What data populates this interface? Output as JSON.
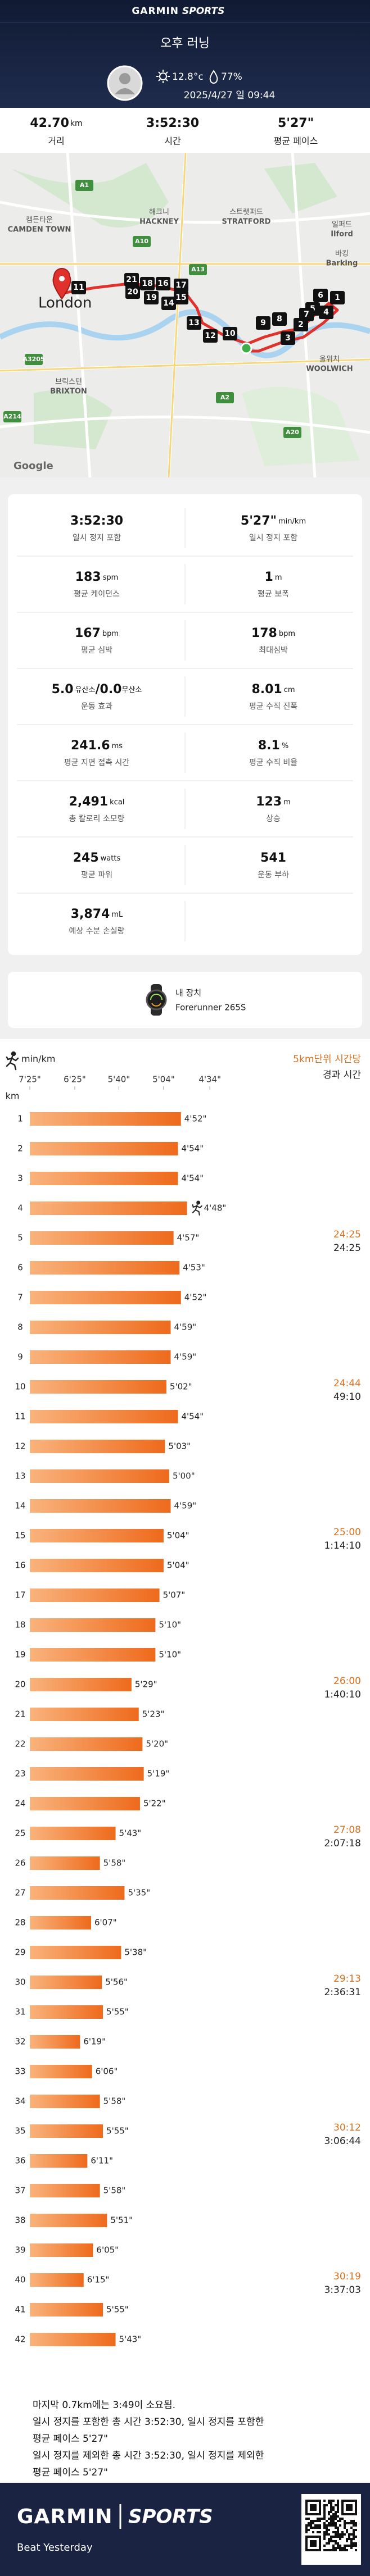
{
  "header": {
    "brand": "GARMIN",
    "brand2": "SPORTS"
  },
  "activity": {
    "title": "오후 러닝",
    "temperature": "12.8°c",
    "humidity": "77%",
    "datetime": "2025/4/27 일 09:44"
  },
  "summary": [
    {
      "value": "42.70",
      "unit": "km",
      "label": "거리"
    },
    {
      "value": "3:52:30",
      "label": "시간"
    },
    {
      "value": "5'27\"",
      "label": "평균 페이스"
    }
  ],
  "map": {
    "places": [
      {
        "ko": "캠든타운",
        "en": "CAMDEN TOWN"
      },
      {
        "ko": "해크니",
        "en": "HACKNEY"
      },
      {
        "ko": "스트랫퍼드",
        "en": "STRATFORD"
      },
      {
        "ko": "일퍼드",
        "en": "Ilford"
      },
      {
        "ko": "바킹",
        "en": "Barking"
      },
      {
        "ko": "브릭스턴",
        "en": "BRIXTON"
      },
      {
        "ko": "울위치",
        "en": "WOOLWICH"
      }
    ],
    "city": "London",
    "roads": [
      "A1",
      "A10",
      "A13",
      "A2",
      "A20",
      "A3205",
      "A214"
    ],
    "markers": [
      "1",
      "2",
      "3",
      "4",
      "5",
      "6",
      "7",
      "8",
      "9",
      "10",
      "11",
      "12",
      "13",
      "14",
      "15",
      "16",
      "17",
      "18",
      "19",
      "20",
      "21"
    ],
    "attribution": "Google"
  },
  "stats": [
    [
      {
        "value": "3:52:30",
        "label": "일시 정지 포함"
      },
      {
        "value": "5'27\"",
        "unit": "min/km",
        "label": "일시 정지 포함"
      }
    ],
    [
      {
        "value": "183",
        "unit": "spm",
        "label": "평균 케이던스"
      },
      {
        "value": "1",
        "unit": "m",
        "label": "평균 보폭"
      }
    ],
    [
      {
        "value": "167",
        "unit": "bpm",
        "label": "평균 심박"
      },
      {
        "value": "178",
        "unit": "bpm",
        "label": "최대심박"
      }
    ],
    [
      {
        "value": "5.0",
        "unit": "유산소",
        "value2": "/0.0",
        "unit2": "무산소",
        "label": "운동 효과"
      },
      {
        "value": "8.01",
        "unit": "cm",
        "label": "평균 수직 진폭"
      }
    ],
    [
      {
        "value": "241.6",
        "unit": "ms",
        "label": "평균 지면 접촉 시간"
      },
      {
        "value": "8.1",
        "unit": "%",
        "label": "평균 수직 비율"
      }
    ],
    [
      {
        "value": "2,491",
        "unit": "kcal",
        "label": "총 칼로리 소모량"
      },
      {
        "value": "123",
        "unit": "m",
        "label": "상승"
      }
    ],
    [
      {
        "value": "245",
        "unit": "watts",
        "label": "평균 파워"
      },
      {
        "value": "541",
        "label": "운동 부하"
      }
    ],
    [
      {
        "value": "3,874",
        "unit": "mL",
        "label": "예상 수분 손실량"
      }
    ]
  ],
  "device": {
    "label": "내 장치",
    "name": "Forerunner 265S"
  },
  "chart_data": {
    "type": "bar",
    "orientation": "horizontal",
    "x_label": "min/km",
    "y_label": "km",
    "xscale": "reciprocal",
    "xlim": [
      445,
      263
    ],
    "xticks": [
      {
        "value": 445,
        "label": "7'25\""
      },
      {
        "value": 385,
        "label": "6'25\""
      },
      {
        "value": 340,
        "label": "5'40\""
      },
      {
        "value": 304,
        "label": "5'04\""
      },
      {
        "value": 274,
        "label": "4'34\""
      }
    ],
    "bar_colors": [
      "#f9b37c",
      "#ee6a1c"
    ],
    "categories": [
      1,
      2,
      3,
      4,
      5,
      6,
      7,
      8,
      9,
      10,
      11,
      12,
      13,
      14,
      15,
      16,
      17,
      18,
      19,
      20,
      21,
      22,
      23,
      24,
      25,
      26,
      27,
      28,
      29,
      30,
      31,
      32,
      33,
      34,
      35,
      36,
      37,
      38,
      39,
      40,
      41,
      42
    ],
    "values": [
      292,
      294,
      294,
      288,
      297,
      293,
      292,
      299,
      299,
      302,
      294,
      303,
      300,
      299,
      304,
      304,
      307,
      310,
      310,
      329,
      323,
      320,
      319,
      322,
      343,
      358,
      335,
      367,
      338,
      356,
      355,
      379,
      366,
      358,
      355,
      371,
      358,
      351,
      365,
      375,
      355,
      343
    ],
    "value_labels": [
      "4'52\"",
      "4'54\"",
      "4'54\"",
      "4'48\"",
      "4'57\"",
      "4'53\"",
      "4'52\"",
      "4'59\"",
      "4'59\"",
      "5'02\"",
      "4'54\"",
      "5'03\"",
      "5'00\"",
      "4'59\"",
      "5'04\"",
      "5'04\"",
      "5'07\"",
      "5'10\"",
      "5'10\"",
      "5'29\"",
      "5'23\"",
      "5'20\"",
      "5'19\"",
      "5'22\"",
      "5'43\"",
      "5'58\"",
      "5'35\"",
      "6'07\"",
      "5'38\"",
      "5'56\"",
      "5'55\"",
      "6'19\"",
      "6'06\"",
      "5'58\"",
      "5'55\"",
      "6'11\"",
      "5'58\"",
      "5'51\"",
      "6'05\"",
      "6'15\"",
      "5'55\"",
      "5'43\""
    ],
    "splits": {
      "title": "5km단위 시간당",
      "subtitle": "경과 시간",
      "split_color": "#d9701f",
      "split_times": [
        null,
        null,
        null,
        null,
        "24:25",
        null,
        null,
        null,
        null,
        "24:44",
        null,
        null,
        null,
        null,
        "25:00",
        null,
        null,
        null,
        null,
        "26:00",
        null,
        null,
        null,
        null,
        "27:08",
        null,
        null,
        null,
        null,
        "29:13",
        null,
        null,
        null,
        null,
        "30:12",
        null,
        null,
        null,
        null,
        "30:19",
        null,
        null
      ],
      "elapsed": [
        null,
        null,
        null,
        null,
        "24:25",
        null,
        null,
        null,
        null,
        "49:10",
        null,
        null,
        null,
        null,
        "1:14:10",
        null,
        null,
        null,
        null,
        "1:40:10",
        null,
        null,
        null,
        null,
        "2:07:18",
        null,
        null,
        null,
        null,
        "2:36:31",
        null,
        null,
        null,
        null,
        "3:06:44",
        null,
        null,
        null,
        null,
        "3:37:03",
        null,
        null
      ]
    }
  },
  "notes": [
    "마지막 0.7km에는 3:49이 소요됨.",
    "일시 정지를 포함한 총 시간 3:52:30, 일시 정지를 포함한",
    "평균 페이스 5'27\"",
    "일시 정지를 제외한 총 시간 3:52:30, 일시 정지를 제외한",
    "평균 페이스 5'27\""
  ],
  "footer": {
    "brand": "GARMIN",
    "brand2": "SPORTS",
    "tagline": "Beat Yesterday"
  }
}
